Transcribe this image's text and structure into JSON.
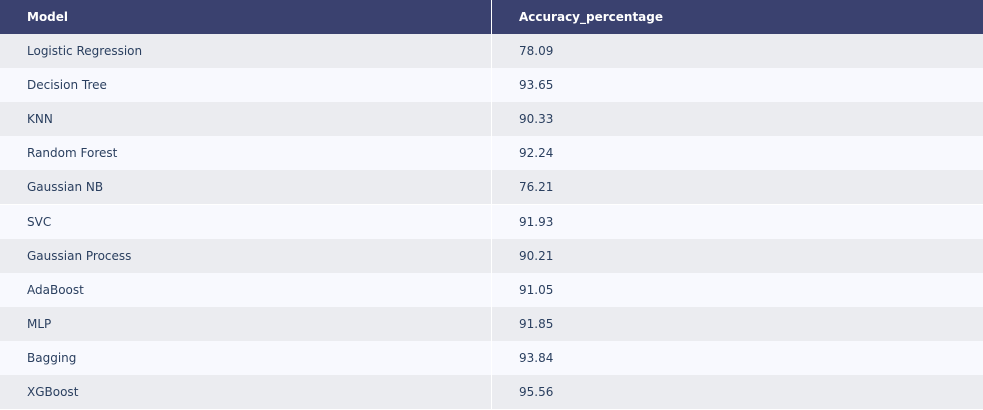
{
  "chart_data": {
    "type": "table",
    "columns": [
      "Model",
      "Accuracy_percentage"
    ],
    "rows": [
      [
        "Logistic Regression",
        "78.09"
      ],
      [
        "Decision Tree",
        "93.65"
      ],
      [
        "KNN",
        "90.33"
      ],
      [
        "Random Forest",
        "92.24"
      ],
      [
        "Gaussian NB",
        "76.21"
      ],
      [
        "SVC",
        "91.93"
      ],
      [
        "Gaussian Process",
        "90.21"
      ],
      [
        "AdaBoost",
        "91.05"
      ],
      [
        "MLP",
        "91.85"
      ],
      [
        "Bagging",
        "93.84"
      ],
      [
        "XGBoost",
        "95.56"
      ]
    ],
    "colors": {
      "header_bg": "#3a416f",
      "header_text": "#ffffff",
      "row_even_bg": "#ebecf0",
      "row_odd_bg": "#f8f9fe",
      "cell_text": "#2a3f5f"
    }
  }
}
